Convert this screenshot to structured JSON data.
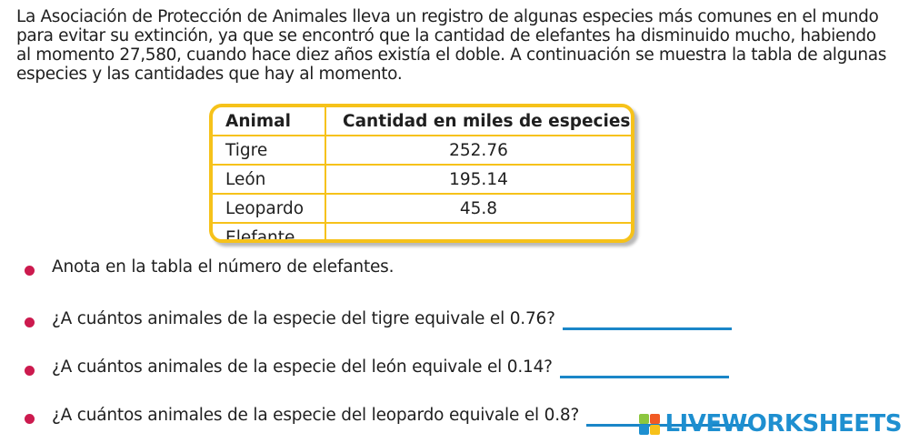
{
  "intro": {
    "lines": [
      "La Asociación de Protección de Animales lleva un registro de algunas especies más comunes en el mundo",
      "para evitar su extinción, ya que se encontró que la cantidad de elefantes ha disminuido mucho, habiendo",
      "al momento 27,580, cuando hace diez años existía el doble. A continuación se muestra la tabla de algunas",
      "especies y las cantidades que hay al momento."
    ]
  },
  "table": {
    "headers": [
      "Animal",
      "Cantidad en miles de especies"
    ],
    "rows": [
      {
        "animal": "Tigre",
        "cantidad": "252.76"
      },
      {
        "animal": "León",
        "cantidad": "195.14"
      },
      {
        "animal": "Leopardo",
        "cantidad": "45.8"
      },
      {
        "animal": "Elefante",
        "cantidad": ""
      }
    ]
  },
  "questions": [
    {
      "text": "Anota en la tabla el número de elefantes.",
      "has_answer": false
    },
    {
      "text": "¿A cuántos animales de la especie del tigre equivale el 0.76?",
      "has_answer": true
    },
    {
      "text": "¿A cuántos animales de la especie del león equivale el 0.14?",
      "has_answer": true
    },
    {
      "text": "¿A cuántos animales de la especie del leopardo equivale el 0.8?",
      "has_answer": true
    }
  ],
  "watermark": {
    "text": "LIVEWORKSHEETS",
    "icon_letters": [
      "L",
      "W",
      "",
      ""
    ],
    "icon_colors": [
      "#8cc63f",
      "#f15a24",
      "#1e8fd0",
      "#f7c11a"
    ],
    "color": "#1e8fd0"
  },
  "colors": {
    "table_border": "#f6c21a",
    "bullet": "#cc1a4e",
    "answer_line": "#1a86c8"
  }
}
